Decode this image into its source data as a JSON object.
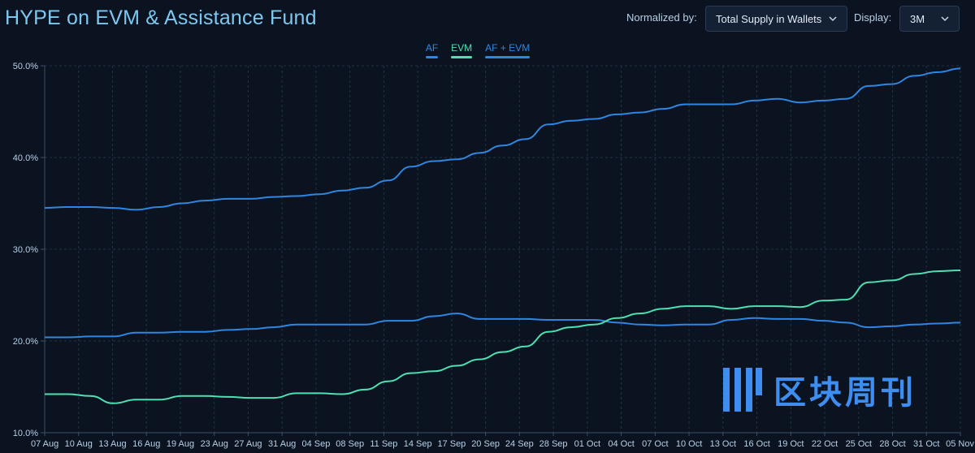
{
  "header": {
    "title": "HYPE on EVM & Assistance Fund",
    "normalized_label": "Normalized by:",
    "normalized_value": "Total Supply in Wallets",
    "display_label": "Display:",
    "display_value": "3M"
  },
  "colors": {
    "af": "#2f86e0",
    "evm": "#4de0b0",
    "af_evm": "#2f86e0",
    "grid": "#213247",
    "axis": "#3a4f68"
  },
  "watermark": {
    "text": "区块周刊",
    "icon": "logo-icon"
  },
  "chart_data": {
    "type": "line",
    "title": "HYPE on EVM & Assistance Fund",
    "ylabel": "",
    "ylim": [
      10,
      50
    ],
    "yticks": [
      "10.0%",
      "20.0%",
      "30.0%",
      "40.0%",
      "50.0%"
    ],
    "x_ticks": [
      "07 Aug",
      "10 Aug",
      "13 Aug",
      "16 Aug",
      "19 Aug",
      "23 Aug",
      "27 Aug",
      "31 Aug",
      "04 Sep",
      "08 Sep",
      "11 Sep",
      "14 Sep",
      "17 Sep",
      "20 Sep",
      "24 Sep",
      "28 Sep",
      "01 Oct",
      "04 Oct",
      "07 Oct",
      "10 Oct",
      "13 Oct",
      "16 Oct",
      "19 Oct",
      "22 Oct",
      "25 Oct",
      "28 Oct",
      "31 Oct",
      "05 Nov"
    ],
    "legend": [
      "AF",
      "EVM",
      "AF + EVM"
    ],
    "series": [
      {
        "name": "AF",
        "values": [
          20.4,
          20.4,
          20.5,
          20.5,
          20.9,
          20.9,
          21.0,
          21.0,
          21.2,
          21.3,
          21.5,
          21.8,
          21.8,
          21.8,
          21.8,
          22.2,
          22.2,
          22.7,
          23.0,
          22.4,
          22.4,
          22.4,
          22.3,
          22.3,
          22.3,
          22.0,
          21.8,
          21.7,
          21.8,
          21.8,
          22.3,
          22.5,
          22.4,
          22.4,
          22.2,
          22.0,
          21.5,
          21.6,
          21.8,
          21.9,
          22.0
        ]
      },
      {
        "name": "EVM",
        "values": [
          14.2,
          14.2,
          14.0,
          13.2,
          13.6,
          13.6,
          14.0,
          14.0,
          13.9,
          13.8,
          13.8,
          14.3,
          14.3,
          14.2,
          14.7,
          15.6,
          16.5,
          16.7,
          17.3,
          18.0,
          18.8,
          19.4,
          21.0,
          21.5,
          21.8,
          22.5,
          23.0,
          23.5,
          23.8,
          23.8,
          23.5,
          23.8,
          23.8,
          23.7,
          24.4,
          24.5,
          26.4,
          26.6,
          27.3,
          27.6,
          27.7
        ]
      },
      {
        "name": "AF + EVM",
        "values": [
          34.5,
          34.6,
          34.6,
          34.5,
          34.3,
          34.6,
          35.0,
          35.3,
          35.5,
          35.5,
          35.7,
          35.8,
          36.0,
          36.4,
          36.7,
          37.5,
          39.0,
          39.6,
          39.8,
          40.5,
          41.3,
          42.0,
          43.6,
          44.0,
          44.2,
          44.7,
          44.9,
          45.3,
          45.8,
          45.8,
          45.8,
          46.2,
          46.4,
          46.0,
          46.2,
          46.4,
          47.8,
          48.0,
          48.9,
          49.3,
          49.7
        ]
      }
    ]
  }
}
